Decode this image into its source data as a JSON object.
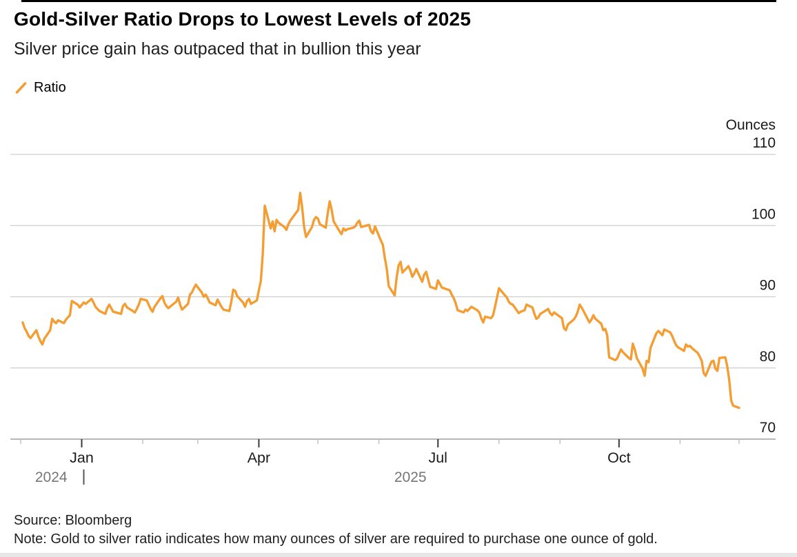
{
  "header": {
    "title": "Gold-Silver Ratio Drops to Lowest Levels of 2025",
    "subtitle": "Silver price gain has outpaced that in bullion this year"
  },
  "legend": {
    "series_label": "Ratio"
  },
  "footer": {
    "source": "Source: Bloomberg",
    "note": "Note: Gold to silver ratio indicates how many ounces of silver are required to purchase one ounce of gold."
  },
  "colors": {
    "line": "#F39D33",
    "grid": "#CDCDCD",
    "axis": "#ADADAD",
    "tick_major": "#3A3A3A",
    "tick_minor": "#BDBDBD",
    "tick_label": "#1A1A1A",
    "year_label": "#76767A",
    "unit_label": "#1A1A1A",
    "top_rule": "#000000"
  },
  "chart_data": {
    "type": "line",
    "title": "Gold-Silver Ratio Drops to Lowest Levels of 2025",
    "subtitle": "Silver price gain has outpaced that in bullion this year",
    "unit_label": "Ounces",
    "ylim": [
      70,
      110
    ],
    "y_ticks": [
      110,
      100,
      90,
      80,
      70
    ],
    "grid": true,
    "legend_position": "top-left",
    "x_range": [
      "2024-12-01",
      "2025-12-01"
    ],
    "x_major_ticks": [
      {
        "date": "2025-01-01",
        "label": "Jan"
      },
      {
        "date": "2025-04-01",
        "label": "Apr"
      },
      {
        "date": "2025-07-01",
        "label": "Jul"
      },
      {
        "date": "2025-10-01",
        "label": "Oct"
      }
    ],
    "x_minor_ticks": [
      "2024-12-01",
      "2025-02-01",
      "2025-03-01",
      "2025-05-01",
      "2025-06-01",
      "2025-08-01",
      "2025-09-01",
      "2025-11-01",
      "2025-12-01"
    ],
    "year_labels": [
      {
        "text": "2024",
        "span": [
          "2024-12-01",
          "2025-01-01"
        ]
      },
      {
        "text": "2025",
        "span": [
          "2025-01-01",
          "2025-12-01"
        ]
      }
    ],
    "year_divider_date": "2025-01-01",
    "series": [
      {
        "name": "Ratio",
        "points": [
          [
            "2024-12-02",
            86.4
          ],
          [
            "2024-12-03",
            85.6
          ],
          [
            "2024-12-04",
            85.1
          ],
          [
            "2024-12-05",
            84.5
          ],
          [
            "2024-12-06",
            84.2
          ],
          [
            "2024-12-09",
            85.3
          ],
          [
            "2024-12-10",
            84.4
          ],
          [
            "2024-12-11",
            83.8
          ],
          [
            "2024-12-12",
            83.3
          ],
          [
            "2024-12-13",
            84.1
          ],
          [
            "2024-12-16",
            85.3
          ],
          [
            "2024-12-17",
            86.9
          ],
          [
            "2024-12-18",
            86.5
          ],
          [
            "2024-12-19",
            86.3
          ],
          [
            "2024-12-20",
            86.7
          ],
          [
            "2024-12-23",
            86.3
          ],
          [
            "2024-12-24",
            86.8
          ],
          [
            "2024-12-26",
            87.4
          ],
          [
            "2024-12-27",
            89.4
          ],
          [
            "2024-12-30",
            88.9
          ],
          [
            "2024-12-31",
            88.5
          ],
          [
            "2025-01-02",
            89.2
          ],
          [
            "2025-01-03",
            89.0
          ],
          [
            "2025-01-06",
            89.7
          ],
          [
            "2025-01-07",
            89.2
          ],
          [
            "2025-01-08",
            88.6
          ],
          [
            "2025-01-09",
            88.3
          ],
          [
            "2025-01-10",
            88.0
          ],
          [
            "2025-01-13",
            87.6
          ],
          [
            "2025-01-14",
            88.4
          ],
          [
            "2025-01-15",
            88.9
          ],
          [
            "2025-01-16",
            88.4
          ],
          [
            "2025-01-17",
            87.9
          ],
          [
            "2025-01-21",
            87.6
          ],
          [
            "2025-01-22",
            88.7
          ],
          [
            "2025-01-23",
            89.0
          ],
          [
            "2025-01-24",
            88.5
          ],
          [
            "2025-01-27",
            88.0
          ],
          [
            "2025-01-28",
            87.8
          ],
          [
            "2025-01-29",
            88.3
          ],
          [
            "2025-01-30",
            88.9
          ],
          [
            "2025-01-31",
            89.7
          ],
          [
            "2025-02-03",
            89.5
          ],
          [
            "2025-02-04",
            88.9
          ],
          [
            "2025-02-05",
            88.3
          ],
          [
            "2025-02-06",
            87.9
          ],
          [
            "2025-02-07",
            88.6
          ],
          [
            "2025-02-10",
            89.8
          ],
          [
            "2025-02-11",
            90.1
          ],
          [
            "2025-02-12",
            89.2
          ],
          [
            "2025-02-13",
            88.7
          ],
          [
            "2025-02-14",
            88.4
          ],
          [
            "2025-02-18",
            89.3
          ],
          [
            "2025-02-19",
            89.9
          ],
          [
            "2025-02-20",
            88.9
          ],
          [
            "2025-02-21",
            88.2
          ],
          [
            "2025-02-24",
            89.0
          ],
          [
            "2025-02-25",
            90.3
          ],
          [
            "2025-02-26",
            90.6
          ],
          [
            "2025-02-27",
            91.2
          ],
          [
            "2025-02-28",
            91.7
          ],
          [
            "2025-03-03",
            90.6
          ],
          [
            "2025-03-04",
            90.0
          ],
          [
            "2025-03-05",
            90.3
          ],
          [
            "2025-03-06",
            89.8
          ],
          [
            "2025-03-07",
            89.2
          ],
          [
            "2025-03-10",
            88.8
          ],
          [
            "2025-03-11",
            89.6
          ],
          [
            "2025-03-12",
            89.1
          ],
          [
            "2025-03-13",
            88.6
          ],
          [
            "2025-03-14",
            88.2
          ],
          [
            "2025-03-17",
            88.0
          ],
          [
            "2025-03-18",
            89.3
          ],
          [
            "2025-03-19",
            91.0
          ],
          [
            "2025-03-20",
            90.8
          ],
          [
            "2025-03-21",
            90.1
          ],
          [
            "2025-03-24",
            89.2
          ],
          [
            "2025-03-25",
            88.6
          ],
          [
            "2025-03-26",
            89.4
          ],
          [
            "2025-03-27",
            89.7
          ],
          [
            "2025-03-28",
            89.0
          ],
          [
            "2025-03-31",
            89.5
          ],
          [
            "2025-04-01",
            90.9
          ],
          [
            "2025-04-02",
            92.2
          ],
          [
            "2025-04-03",
            96.0
          ],
          [
            "2025-04-04",
            102.8
          ],
          [
            "2025-04-07",
            99.6
          ],
          [
            "2025-04-08",
            100.6
          ],
          [
            "2025-04-09",
            99.2
          ],
          [
            "2025-04-10",
            100.8
          ],
          [
            "2025-04-11",
            100.4
          ],
          [
            "2025-04-14",
            99.8
          ],
          [
            "2025-04-15",
            99.4
          ],
          [
            "2025-04-16",
            100.2
          ],
          [
            "2025-04-17",
            100.7
          ],
          [
            "2025-04-21",
            102.2
          ],
          [
            "2025-04-22",
            104.6
          ],
          [
            "2025-04-23",
            102.6
          ],
          [
            "2025-04-24",
            99.8
          ],
          [
            "2025-04-25",
            98.4
          ],
          [
            "2025-04-28",
            99.8
          ],
          [
            "2025-04-29",
            100.8
          ],
          [
            "2025-04-30",
            101.2
          ],
          [
            "2025-05-01",
            101.0
          ],
          [
            "2025-05-02",
            100.2
          ],
          [
            "2025-05-05",
            99.7
          ],
          [
            "2025-05-06",
            101.7
          ],
          [
            "2025-05-07",
            103.4
          ],
          [
            "2025-05-08",
            102.2
          ],
          [
            "2025-05-09",
            100.6
          ],
          [
            "2025-05-12",
            99.2
          ],
          [
            "2025-05-13",
            98.8
          ],
          [
            "2025-05-14",
            99.6
          ],
          [
            "2025-05-15",
            99.3
          ],
          [
            "2025-05-16",
            99.5
          ],
          [
            "2025-05-19",
            99.7
          ],
          [
            "2025-05-20",
            99.9
          ],
          [
            "2025-05-21",
            100.4
          ],
          [
            "2025-05-22",
            100.7
          ],
          [
            "2025-05-23",
            99.8
          ],
          [
            "2025-05-27",
            100.1
          ],
          [
            "2025-05-28",
            99.2
          ],
          [
            "2025-05-29",
            98.9
          ],
          [
            "2025-05-30",
            99.9
          ],
          [
            "2025-06-02",
            97.9
          ],
          [
            "2025-06-03",
            97.3
          ],
          [
            "2025-06-04",
            95.5
          ],
          [
            "2025-06-05",
            93.9
          ],
          [
            "2025-06-06",
            91.5
          ],
          [
            "2025-06-09",
            90.2
          ],
          [
            "2025-06-10",
            92.7
          ],
          [
            "2025-06-11",
            94.4
          ],
          [
            "2025-06-12",
            94.9
          ],
          [
            "2025-06-13",
            93.4
          ],
          [
            "2025-06-16",
            94.3
          ],
          [
            "2025-06-17",
            93.7
          ],
          [
            "2025-06-18",
            92.8
          ],
          [
            "2025-06-19",
            93.3
          ],
          [
            "2025-06-20",
            93.9
          ],
          [
            "2025-06-23",
            92.1
          ],
          [
            "2025-06-24",
            93.1
          ],
          [
            "2025-06-25",
            93.5
          ],
          [
            "2025-06-26",
            92.5
          ],
          [
            "2025-06-27",
            91.4
          ],
          [
            "2025-06-30",
            91.1
          ],
          [
            "2025-07-01",
            92.3
          ],
          [
            "2025-07-02",
            91.8
          ],
          [
            "2025-07-03",
            91.3
          ],
          [
            "2025-07-07",
            90.9
          ],
          [
            "2025-07-08",
            90.3
          ],
          [
            "2025-07-09",
            89.8
          ],
          [
            "2025-07-10",
            89.1
          ],
          [
            "2025-07-11",
            88.1
          ],
          [
            "2025-07-14",
            87.8
          ],
          [
            "2025-07-15",
            88.2
          ],
          [
            "2025-07-16",
            88.0
          ],
          [
            "2025-07-17",
            88.3
          ],
          [
            "2025-07-18",
            88.6
          ],
          [
            "2025-07-21",
            88.1
          ],
          [
            "2025-07-22",
            87.8
          ],
          [
            "2025-07-23",
            87.0
          ],
          [
            "2025-07-24",
            86.4
          ],
          [
            "2025-07-25",
            87.2
          ],
          [
            "2025-07-28",
            87.0
          ],
          [
            "2025-07-29",
            87.4
          ],
          [
            "2025-07-30",
            88.6
          ],
          [
            "2025-07-31",
            89.9
          ],
          [
            "2025-08-01",
            91.2
          ],
          [
            "2025-08-04",
            90.2
          ],
          [
            "2025-08-05",
            89.9
          ],
          [
            "2025-08-06",
            89.3
          ],
          [
            "2025-08-07",
            89.0
          ],
          [
            "2025-08-08",
            88.9
          ],
          [
            "2025-08-11",
            87.7
          ],
          [
            "2025-08-12",
            87.9
          ],
          [
            "2025-08-13",
            88.0
          ],
          [
            "2025-08-14",
            88.1
          ],
          [
            "2025-08-15",
            88.9
          ],
          [
            "2025-08-18",
            88.5
          ],
          [
            "2025-08-19",
            87.6
          ],
          [
            "2025-08-20",
            86.9
          ],
          [
            "2025-08-21",
            87.1
          ],
          [
            "2025-08-22",
            87.6
          ],
          [
            "2025-08-25",
            88.1
          ],
          [
            "2025-08-26",
            88.3
          ],
          [
            "2025-08-27",
            87.7
          ],
          [
            "2025-08-28",
            87.4
          ],
          [
            "2025-08-29",
            87.8
          ],
          [
            "2025-09-02",
            87.0
          ],
          [
            "2025-09-03",
            85.6
          ],
          [
            "2025-09-04",
            85.3
          ],
          [
            "2025-09-05",
            86.1
          ],
          [
            "2025-09-08",
            86.8
          ],
          [
            "2025-09-09",
            87.2
          ],
          [
            "2025-09-10",
            87.9
          ],
          [
            "2025-09-11",
            88.9
          ],
          [
            "2025-09-12",
            88.5
          ],
          [
            "2025-09-15",
            86.9
          ],
          [
            "2025-09-16",
            86.4
          ],
          [
            "2025-09-17",
            86.8
          ],
          [
            "2025-09-18",
            87.4
          ],
          [
            "2025-09-19",
            86.9
          ],
          [
            "2025-09-22",
            86.2
          ],
          [
            "2025-09-23",
            85.3
          ],
          [
            "2025-09-24",
            85.5
          ],
          [
            "2025-09-25",
            84.6
          ],
          [
            "2025-09-26",
            81.5
          ],
          [
            "2025-09-29",
            81.1
          ],
          [
            "2025-09-30",
            81.3
          ],
          [
            "2025-10-01",
            82.0
          ],
          [
            "2025-10-02",
            82.6
          ],
          [
            "2025-10-03",
            82.2
          ],
          [
            "2025-10-06",
            81.4
          ],
          [
            "2025-10-07",
            81.2
          ],
          [
            "2025-10-08",
            83.4
          ],
          [
            "2025-10-09",
            82.6
          ],
          [
            "2025-10-10",
            81.4
          ],
          [
            "2025-10-13",
            79.9
          ],
          [
            "2025-10-14",
            78.9
          ],
          [
            "2025-10-15",
            81.0
          ],
          [
            "2025-10-16",
            80.8
          ],
          [
            "2025-10-17",
            82.8
          ],
          [
            "2025-10-20",
            84.9
          ],
          [
            "2025-10-21",
            85.2
          ],
          [
            "2025-10-22",
            84.9
          ],
          [
            "2025-10-23",
            84.6
          ],
          [
            "2025-10-24",
            85.4
          ],
          [
            "2025-10-27",
            85.0
          ],
          [
            "2025-10-28",
            84.5
          ],
          [
            "2025-10-29",
            83.8
          ],
          [
            "2025-10-30",
            83.2
          ],
          [
            "2025-10-31",
            82.9
          ],
          [
            "2025-11-03",
            82.4
          ],
          [
            "2025-11-04",
            83.3
          ],
          [
            "2025-11-05",
            83.0
          ],
          [
            "2025-11-06",
            83.1
          ],
          [
            "2025-11-07",
            82.8
          ],
          [
            "2025-11-10",
            82.1
          ],
          [
            "2025-11-11",
            81.6
          ],
          [
            "2025-11-12",
            81.0
          ],
          [
            "2025-11-13",
            79.3
          ],
          [
            "2025-11-14",
            78.9
          ],
          [
            "2025-11-17",
            80.9
          ],
          [
            "2025-11-18",
            81.0
          ],
          [
            "2025-11-19",
            79.9
          ],
          [
            "2025-11-20",
            79.6
          ],
          [
            "2025-11-21",
            81.4
          ],
          [
            "2025-11-24",
            81.5
          ],
          [
            "2025-11-25",
            80.2
          ],
          [
            "2025-11-26",
            78.3
          ],
          [
            "2025-11-27",
            75.4
          ],
          [
            "2025-11-28",
            74.7
          ],
          [
            "2025-12-01",
            74.4
          ]
        ]
      }
    ]
  }
}
